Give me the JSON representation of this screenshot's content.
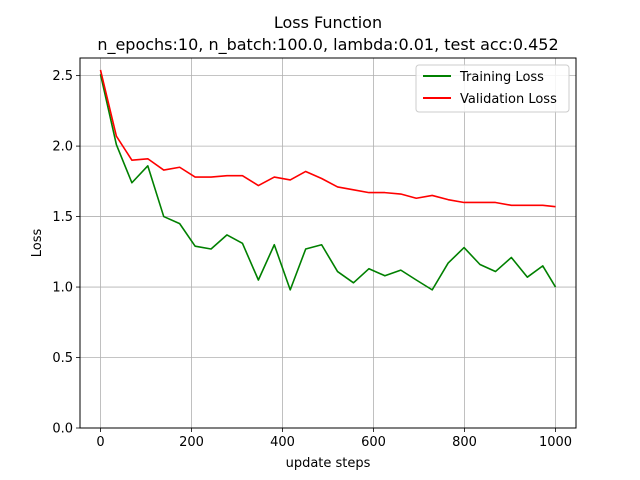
{
  "chart_data": {
    "type": "line",
    "title": "Loss Function",
    "subtitle": "n_epochs:10, n_batch:100.0, lambda:0.01, test acc:0.452",
    "xlabel": "update steps",
    "ylabel": "Loss",
    "xlim": [
      -45,
      1045
    ],
    "ylim": [
      0.0,
      2.625
    ],
    "xticks": [
      0,
      200,
      400,
      600,
      800,
      1000
    ],
    "xtick_labels": [
      "0",
      "200",
      "400",
      "600",
      "800",
      "1000"
    ],
    "yticks": [
      0.0,
      0.5,
      1.0,
      1.5,
      2.0,
      2.5
    ],
    "ytick_labels": [
      "0.0",
      "0.5",
      "1.0",
      "1.5",
      "2.0",
      "2.5"
    ],
    "grid": true,
    "legend_position": "top-right",
    "x": [
      0,
      35,
      69,
      104,
      139,
      174,
      208,
      243,
      278,
      312,
      347,
      382,
      417,
      451,
      486,
      521,
      556,
      590,
      625,
      660,
      694,
      729,
      764,
      799,
      834,
      868,
      903,
      938,
      972,
      1000
    ],
    "series": [
      {
        "name": "Training Loss",
        "color": "#008000",
        "values": [
          2.51,
          2.01,
          1.74,
          1.86,
          1.5,
          1.45,
          1.29,
          1.27,
          1.37,
          1.31,
          1.05,
          1.3,
          0.98,
          1.27,
          1.3,
          1.11,
          1.03,
          1.13,
          1.08,
          1.12,
          1.05,
          0.98,
          1.17,
          1.28,
          1.16,
          1.11,
          1.21,
          1.07,
          1.15,
          1.0
        ]
      },
      {
        "name": "Validation Loss",
        "color": "#ff0000",
        "values": [
          2.54,
          2.07,
          1.9,
          1.91,
          1.83,
          1.85,
          1.78,
          1.78,
          1.79,
          1.79,
          1.72,
          1.78,
          1.76,
          1.82,
          1.77,
          1.71,
          1.69,
          1.67,
          1.67,
          1.66,
          1.63,
          1.65,
          1.62,
          1.6,
          1.6,
          1.6,
          1.58,
          1.58,
          1.58,
          1.57
        ]
      }
    ]
  }
}
